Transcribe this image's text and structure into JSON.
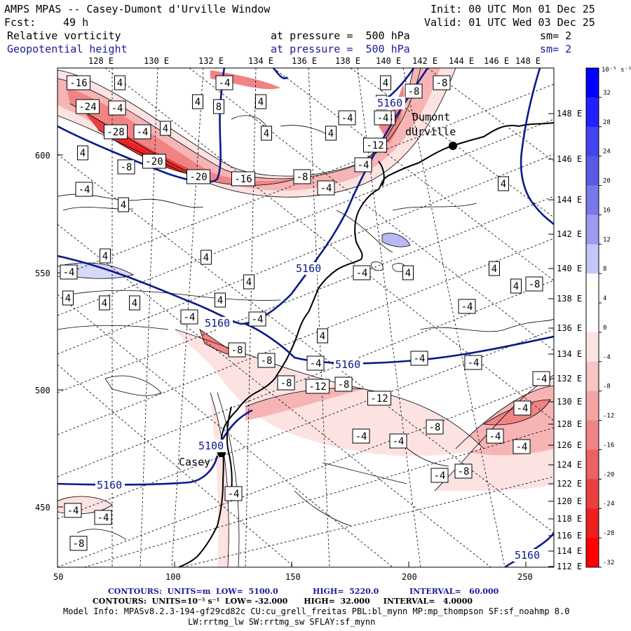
{
  "header": {
    "title": "AMPS MPAS -- Casey-Dumont d'Urville Window",
    "init": "Init: 00 UTC Mon 01 Dec 25",
    "fcst_label": "Fcst:",
    "fcst_value": "49 h",
    "valid": "Valid: 01 UTC Wed 03 Dec 25",
    "field1_name": "Relative vorticity",
    "field1_level": "at pressure =  500 hPa",
    "field1_sm": "sm= 2",
    "field2_name": "Geopotential height",
    "field2_level": "at pressure =  500 hPa",
    "field2_sm": "sm= 2"
  },
  "map": {
    "longitudes_top": [
      "128 E",
      "130 E",
      "132 E",
      "134 E",
      "136 E",
      "138 E",
      "140 E",
      "142 E",
      "144 E",
      "146 E",
      "148 E"
    ],
    "longitudes_right": [
      "148 E",
      "146 E",
      "144 E",
      "142 E",
      "140 E",
      "138 E",
      "136 E",
      "134 E",
      "132 E",
      "130 E",
      "128 E",
      "126 E",
      "124 E",
      "122 E",
      "120 E",
      "118 E",
      "116 E",
      "114 E",
      "112 E"
    ],
    "y_ticks": [
      "600",
      "550",
      "500",
      "450"
    ],
    "x_ticks": [
      "50",
      "100",
      "150",
      "200",
      "250"
    ],
    "stations": [
      {
        "name": "Casey",
        "label": "Casey"
      },
      {
        "name": "Dumont",
        "label": "Dumont"
      },
      {
        "name": "Dumont2",
        "label": "dUrville"
      }
    ],
    "height_labels": [
      "5160",
      "5160",
      "5160",
      "5160",
      "5100",
      "5160",
      "5160"
    ],
    "vort_labels": [
      "-16",
      "4",
      "-4",
      "4",
      "-8",
      "-8",
      "-24",
      "-4",
      "4",
      "8",
      "4",
      "8",
      "8",
      "-4",
      "-4",
      "-28",
      "-4",
      "4",
      "4",
      "4",
      "-12",
      "-20",
      "-20",
      "-16",
      "-8",
      "-4",
      "-4",
      "4",
      "-4",
      "4",
      "4",
      "-8",
      "4",
      "4",
      "4",
      "-4",
      "4",
      "4",
      "4",
      "4",
      "-4",
      "-4",
      "4",
      "-4",
      "4",
      "4",
      "4",
      "-8",
      "-4",
      "-4",
      "-4",
      "-8",
      "-8",
      "-12",
      "-8",
      "-4",
      "-8",
      "-12",
      "-4",
      "-4",
      "-8",
      "-4",
      "-4",
      "-4",
      "-4",
      "-4",
      "-8",
      "-4",
      "-4",
      "-8",
      "-4"
    ],
    "colors": {
      "height_contour": "#0a1a8a",
      "coast": "#000000",
      "grid": "#000000"
    }
  },
  "colorbar": {
    "unit": "10⁻⁵ s⁻¹",
    "labels": [
      "32",
      "28",
      "24",
      "20",
      "16",
      "12",
      "8",
      "4",
      "0",
      "-4",
      "-8",
      "-12",
      "-16",
      "-20",
      "-24",
      "-28",
      "-32"
    ],
    "colors": [
      "#0000ff",
      "#2222ff",
      "#4444f0",
      "#5a5ae6",
      "#7878ea",
      "#9c9cf0",
      "#c6c6f8",
      "#ffffff",
      "#ffffff",
      "#fde2e2",
      "#f8c4c4",
      "#f4a4a4",
      "#f08484",
      "#ea6262",
      "#e84040",
      "#ee2020",
      "#ff0000"
    ]
  },
  "footer": {
    "line1_a": "CONTOURS:  UNITS=m  LOW=  5100.0",
    "line1_b": "HIGH=  5220.0",
    "line1_c": "INTERVAL=   60.000",
    "line2": "CONTOURS:  UNITS=10⁻⁵ s⁻¹  LOW= -32.000      HIGH=  32.000     INTERVAL=   4.0000",
    "line3": "Model Info: MPASv8.2.3-194-gf29cd82c CU:cu_grell_freitas PBL:bl_mynn MP:mp_thompson SF:sf_noahmp 8.0",
    "line4": "LW:rrtmg_lw SW:rrtmg_sw SFLAY:sf_mynn"
  }
}
